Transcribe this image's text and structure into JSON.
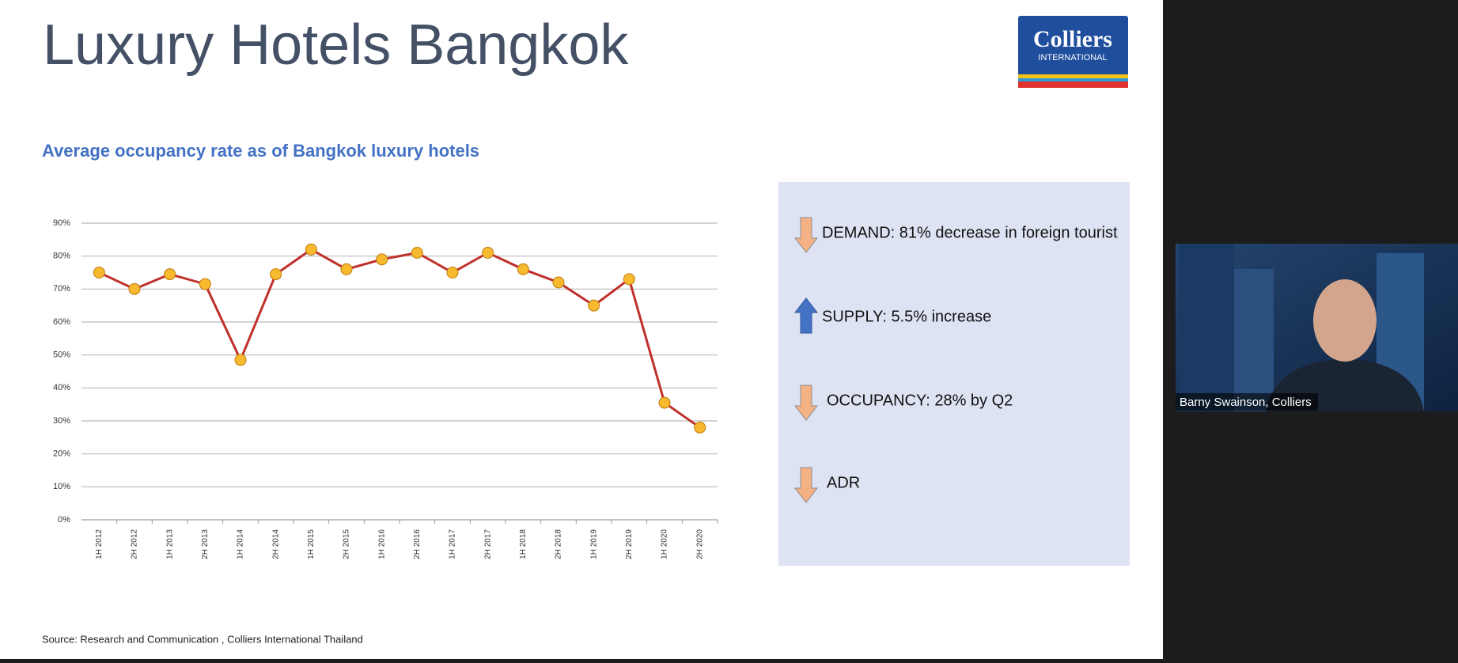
{
  "slide": {
    "title": "Luxury Hotels Bangkok",
    "logo": {
      "name": "Colliers",
      "sub": "INTERNATIONAL"
    },
    "source": "Source: Research and Communication , Colliers International Thailand"
  },
  "chart_data": {
    "type": "line",
    "title": "Average occupancy rate as of Bangkok luxury hotels",
    "categories": [
      "1H 2012",
      "2H 2012",
      "1H 2013",
      "2H 2013",
      "1H 2014",
      "2H 2014",
      "1H 2015",
      "2H 2015",
      "1H 2016",
      "2H 2016",
      "1H 2017",
      "2H 2017",
      "1H 2018",
      "2H 2018",
      "1H 2019",
      "2H 2019",
      "1H 2020",
      "2H 2020"
    ],
    "values": [
      75,
      70,
      74.5,
      71.5,
      48.5,
      74.5,
      82,
      76,
      79,
      81,
      75,
      81,
      76,
      72,
      65,
      73,
      35.5,
      28
    ],
    "color": "#c0302b",
    "marker_color": "#f7b92e",
    "ylim": [
      0,
      90
    ],
    "yticks": [
      {
        "value": 0,
        "label": "0%"
      },
      {
        "value": 10,
        "label": "10%"
      },
      {
        "value": 20,
        "label": "20%"
      },
      {
        "value": 30,
        "label": "30%"
      },
      {
        "value": 40,
        "label": "40%"
      },
      {
        "value": 50,
        "label": "50%"
      },
      {
        "value": 60,
        "label": "60%"
      },
      {
        "value": 70,
        "label": "70%"
      },
      {
        "value": 80,
        "label": "80%"
      },
      {
        "value": 90,
        "label": "90%"
      }
    ],
    "grid": true
  },
  "notes": [
    {
      "direction": "down",
      "text": "DEMAND:  81% decrease in foreign tourist"
    },
    {
      "direction": "up",
      "text": "SUPPLY:  5.5% increase"
    },
    {
      "direction": "down",
      "text": "OCCUPANCY:   28% by Q2"
    },
    {
      "direction": "down",
      "text": "ADR"
    }
  ],
  "video": {
    "name": "Barny Swainson, Colliers"
  }
}
